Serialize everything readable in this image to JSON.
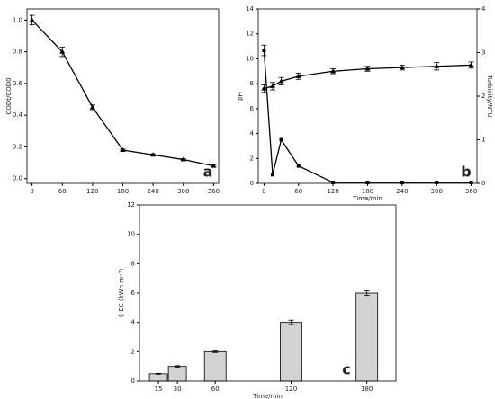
{
  "chart_data": [
    {
      "type": "line",
      "annotation": "a",
      "ylabel": "CODt/COD0",
      "x": [
        0,
        60,
        120,
        180,
        240,
        300,
        360
      ],
      "series": [
        {
          "color": "#000000",
          "marker": "triangle",
          "values": [
            1.0,
            0.8,
            0.45,
            0.18,
            0.15,
            0.12,
            0.08
          ],
          "errors": [
            0.03,
            0.03,
            0.015,
            0.006,
            0.006,
            0.006,
            0.006
          ]
        }
      ],
      "xlim": [
        -10,
        370
      ],
      "xticks": [
        0,
        60,
        120,
        180,
        240,
        300,
        360
      ],
      "ylim": [
        -0.03,
        1.07
      ],
      "yticks": [
        {
          "value": 0,
          "label": "0.0"
        },
        0.2,
        0.4,
        0.6,
        0.8,
        {
          "value": 1,
          "label": "1.0"
        }
      ]
    },
    {
      "type": "line",
      "annotation": "b",
      "xlabel": "Time/min",
      "ylabel": "pH",
      "y2label": "Turbidity/NTU",
      "x": [
        0,
        15,
        30,
        60,
        120,
        180,
        240,
        300,
        360
      ],
      "series": [
        {
          "color": "#000000",
          "marker": "triangle",
          "values": [
            7.6,
            7.8,
            8.2,
            8.6,
            9.0,
            9.2,
            9.3,
            9.4,
            9.5
          ],
          "errors": [
            0.3,
            0.3,
            0.3,
            0.25,
            0.2,
            0.2,
            0.2,
            0.3,
            0.25
          ]
        },
        {
          "color": "#000000",
          "marker": "square",
          "axis": "y2",
          "values": [
            3.05,
            0.2,
            1.0,
            0.4,
            0.02,
            0.02,
            0.02,
            0.02,
            0.02
          ],
          "errors": [
            0.12,
            0,
            0,
            0,
            0,
            0,
            0,
            0,
            0
          ]
        }
      ],
      "xlim": [
        -10,
        370
      ],
      "xticks": [
        0,
        60,
        120,
        180,
        240,
        300,
        360
      ],
      "ylim": [
        0,
        14
      ],
      "yticks": [
        0,
        2,
        4,
        6,
        8,
        10,
        12,
        14
      ],
      "y2lim": [
        0,
        4
      ],
      "y2ticks": [
        0,
        1,
        2,
        3,
        4
      ]
    },
    {
      "type": "bar",
      "annotation": "c",
      "xlabel": "Time/min",
      "ylabel": "$ EC (kWh m⁻³)",
      "x": [
        15,
        30,
        60,
        120,
        180
      ],
      "values": [
        0.5,
        1.0,
        2.0,
        4.0,
        6.0
      ],
      "errors": [
        0.03,
        0.05,
        0.06,
        0.15,
        0.15
      ],
      "color": "#d3d3d3",
      "xlim": [
        0,
        203
      ],
      "xticks": [
        15,
        30,
        60,
        120,
        180
      ],
      "ylim": [
        0,
        12
      ],
      "yticks": [
        0,
        2,
        4,
        6,
        8,
        10,
        12
      ]
    }
  ]
}
